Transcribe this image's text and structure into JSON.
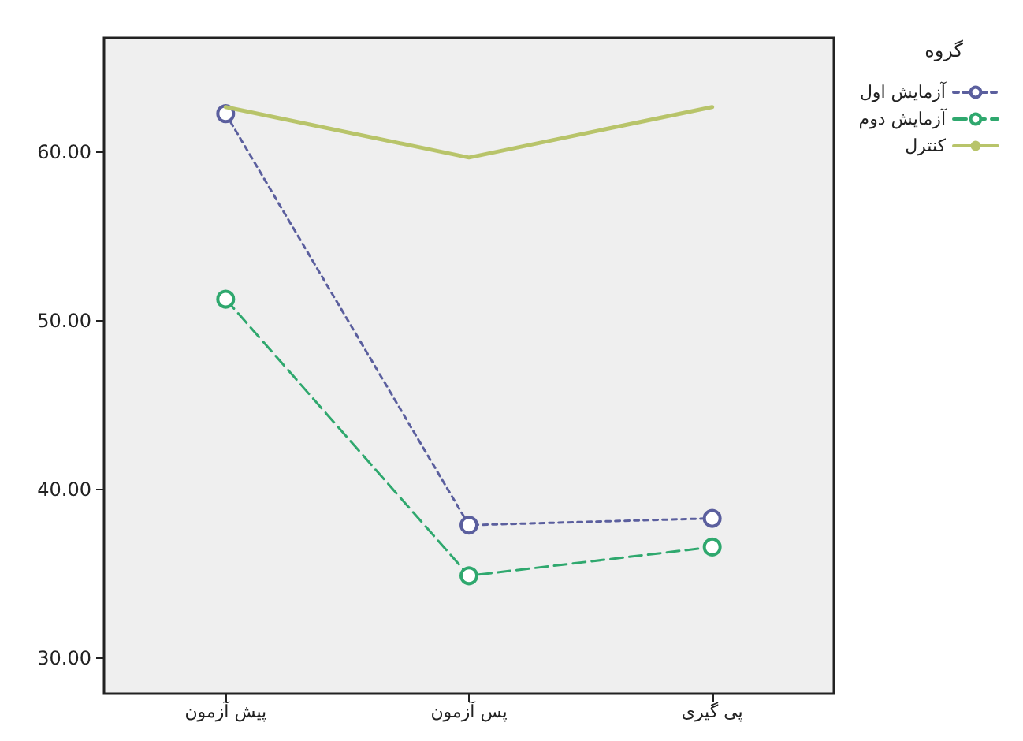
{
  "chart_data": {
    "type": "line",
    "legend_title": "گروه",
    "categories": [
      "پیش آزمون",
      "پس آزمون",
      "پی گیری"
    ],
    "series": [
      {
        "name": "آزمایش اول",
        "color": "#5b5f9e",
        "values": [
          62.3,
          37.9,
          38.3
        ],
        "line_style": "dotted",
        "marker": "circle"
      },
      {
        "name": "آزمایش دوم",
        "color": "#2fa86e",
        "values": [
          51.3,
          34.9,
          36.6
        ],
        "line_style": "dashed",
        "marker": "circle"
      },
      {
        "name": "کنترل",
        "color": "#b8c46a",
        "values": [
          62.7,
          59.7,
          62.7
        ],
        "line_style": "solid",
        "marker": "none"
      }
    ],
    "ylim": [
      27.9,
      66.8
    ],
    "yticks": [
      {
        "value": 30,
        "label": "30.00"
      },
      {
        "value": 40,
        "label": "40.00"
      },
      {
        "value": 50,
        "label": "50.00"
      },
      {
        "value": 60,
        "label": "60.00"
      }
    ],
    "grid": false,
    "legend": "top right"
  }
}
